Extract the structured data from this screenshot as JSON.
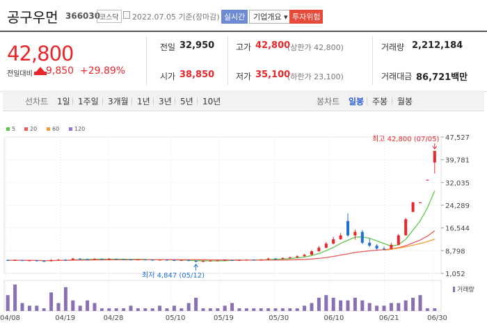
{
  "header": {
    "name": "공구우먼",
    "code": "366030",
    "market": "코스닥",
    "date": "2022.07.05  기준(장마감)",
    "realtime_btn": "실시간",
    "company_btn": "기업개요 ▾",
    "warning_btn": "투자위험"
  },
  "summary": {
    "price": "42,800",
    "change_label": "전일대비",
    "change": "9,850",
    "change_pct": "+29.89%",
    "prev_close_label": "전일",
    "prev_close": "32,950",
    "open_label": "시가",
    "open": "38,850",
    "high_label": "고가",
    "high": "42,800",
    "high_sub": "(상한가 42,800)",
    "low_label": "저가",
    "low": "35,100",
    "low_sub": "(하한가 23,100)",
    "volume_label": "거래량",
    "volume": "2,212,184",
    "amount_label": "거래대금",
    "amount": "86,721백만"
  },
  "tabs": {
    "line_label": "선차트",
    "periods": [
      "1일",
      "1주일",
      "3개월",
      "1년",
      "3년",
      "5년",
      "10년"
    ],
    "candle_label": "봉차트",
    "candles": [
      "일봉",
      "주봉",
      "월봉"
    ],
    "active_candle": "일봉"
  },
  "colors": {
    "up": "#e8262a",
    "down": "#1f6fd1",
    "ma5": "#5ec44a",
    "ma20": "#e85a5a",
    "ma60": "#f19a32",
    "ma120": "#9370c9",
    "volume": "#8a6fb5"
  },
  "chart_data": {
    "type": "candlestick",
    "legend": [
      "5",
      "20",
      "60",
      "120"
    ],
    "y_ticks": [
      "47,527",
      "39,781",
      "32,035",
      "24,289",
      "16,544",
      "8,798",
      "1,052"
    ],
    "x_ticks": [
      "04/08",
      "04/19",
      "04/28",
      "05/10",
      "05/19",
      "05/30",
      "06/10",
      "06/21",
      "06/30"
    ],
    "ylim": [
      1052,
      47527
    ],
    "max_annotation": "최고 42,800 (07/05)",
    "min_annotation": "최저 4,847 (05/12)",
    "volume_label": "거래량",
    "candles": [
      {
        "o": 5600,
        "c": 5500,
        "h": 5800,
        "l": 5300
      },
      {
        "o": 5500,
        "c": 5600,
        "h": 5800,
        "l": 5300
      },
      {
        "o": 5600,
        "c": 5400,
        "h": 5700,
        "l": 5200
      },
      {
        "o": 5400,
        "c": 5500,
        "h": 5700,
        "l": 5300
      },
      {
        "o": 5500,
        "c": 5300,
        "h": 5600,
        "l": 5100
      },
      {
        "o": 5300,
        "c": 5200,
        "h": 5500,
        "l": 5000
      },
      {
        "o": 5200,
        "c": 5600,
        "h": 5900,
        "l": 5100
      },
      {
        "o": 5600,
        "c": 5700,
        "h": 6000,
        "l": 5500
      },
      {
        "o": 5700,
        "c": 5600,
        "h": 5900,
        "l": 5400
      },
      {
        "o": 5600,
        "c": 6100,
        "h": 6300,
        "l": 5500
      },
      {
        "o": 6100,
        "c": 5900,
        "h": 6200,
        "l": 5700
      },
      {
        "o": 5900,
        "c": 5800,
        "h": 6100,
        "l": 5600
      },
      {
        "o": 5800,
        "c": 6000,
        "h": 6200,
        "l": 5700
      },
      {
        "o": 6000,
        "c": 5900,
        "h": 6100,
        "l": 5700
      },
      {
        "o": 5900,
        "c": 6000,
        "h": 6300,
        "l": 5800
      },
      {
        "o": 6000,
        "c": 5900,
        "h": 6100,
        "l": 5700
      },
      {
        "o": 5900,
        "c": 5800,
        "h": 6000,
        "l": 5600
      },
      {
        "o": 5800,
        "c": 5700,
        "h": 5900,
        "l": 5500
      },
      {
        "o": 5700,
        "c": 5800,
        "h": 5900,
        "l": 5600
      },
      {
        "o": 5800,
        "c": 5700,
        "h": 5900,
        "l": 5500
      },
      {
        "o": 5700,
        "c": 5600,
        "h": 5800,
        "l": 5400
      },
      {
        "o": 5600,
        "c": 5700,
        "h": 5800,
        "l": 5500
      },
      {
        "o": 5700,
        "c": 5600,
        "h": 5800,
        "l": 5400
      },
      {
        "o": 5600,
        "c": 5500,
        "h": 5700,
        "l": 5300
      },
      {
        "o": 5500,
        "c": 5600,
        "h": 5700,
        "l": 5400
      },
      {
        "o": 5600,
        "c": 5300,
        "h": 5700,
        "l": 5200
      },
      {
        "o": 5300,
        "c": 5000,
        "h": 5400,
        "l": 4847
      },
      {
        "o": 5000,
        "c": 5300,
        "h": 5500,
        "l": 4900
      },
      {
        "o": 5300,
        "c": 5400,
        "h": 5600,
        "l": 5200
      },
      {
        "o": 5400,
        "c": 5500,
        "h": 5600,
        "l": 5300
      },
      {
        "o": 5500,
        "c": 5600,
        "h": 5700,
        "l": 5400
      },
      {
        "o": 5600,
        "c": 5500,
        "h": 5700,
        "l": 5400
      },
      {
        "o": 5500,
        "c": 5600,
        "h": 5700,
        "l": 5400
      },
      {
        "o": 5600,
        "c": 5700,
        "h": 5800,
        "l": 5500
      },
      {
        "o": 5700,
        "c": 5600,
        "h": 5800,
        "l": 5500
      },
      {
        "o": 5600,
        "c": 5800,
        "h": 5900,
        "l": 5500
      },
      {
        "o": 5800,
        "c": 6100,
        "h": 6400,
        "l": 5700
      },
      {
        "o": 6100,
        "c": 6000,
        "h": 6300,
        "l": 5900
      },
      {
        "o": 6000,
        "c": 6300,
        "h": 6500,
        "l": 5900
      },
      {
        "o": 6300,
        "c": 6500,
        "h": 6800,
        "l": 6200
      },
      {
        "o": 6500,
        "c": 6900,
        "h": 7200,
        "l": 6400
      },
      {
        "o": 6900,
        "c": 7400,
        "h": 7700,
        "l": 6800
      },
      {
        "o": 7400,
        "c": 8600,
        "h": 9000,
        "l": 7300
      },
      {
        "o": 8600,
        "c": 9800,
        "h": 10300,
        "l": 8500
      },
      {
        "o": 9800,
        "c": 11200,
        "h": 11800,
        "l": 9600
      },
      {
        "o": 11200,
        "c": 12700,
        "h": 13500,
        "l": 11000
      },
      {
        "o": 12700,
        "c": 14000,
        "h": 14800,
        "l": 12500
      },
      {
        "o": 18900,
        "c": 14000,
        "h": 21500,
        "l": 13500
      },
      {
        "o": 14000,
        "c": 15200,
        "h": 16000,
        "l": 12500
      },
      {
        "o": 15200,
        "c": 11500,
        "h": 15800,
        "l": 11000
      },
      {
        "o": 11500,
        "c": 10500,
        "h": 13000,
        "l": 10000
      },
      {
        "o": 10500,
        "c": 9500,
        "h": 11000,
        "l": 9000
      },
      {
        "o": 9500,
        "c": 9400,
        "h": 10200,
        "l": 9000
      },
      {
        "o": 9400,
        "c": 10800,
        "h": 11500,
        "l": 9200
      },
      {
        "o": 10800,
        "c": 14000,
        "h": 14500,
        "l": 10500
      },
      {
        "o": 14000,
        "c": 19500,
        "h": 20000,
        "l": 14000
      },
      {
        "o": 22000,
        "c": 25300,
        "h": 25300,
        "l": 22000
      },
      {
        "o": 25300,
        "c": 25300,
        "h": 25300,
        "l": 25300
      },
      {
        "o": 32950,
        "c": 32950,
        "h": 32950,
        "l": 32950
      },
      {
        "o": 38850,
        "c": 42800,
        "h": 42800,
        "l": 35100
      }
    ],
    "volumes": [
      6,
      10,
      3,
      2,
      2,
      1,
      7,
      3,
      9,
      4,
      2,
      4,
      3,
      1,
      1,
      1,
      1,
      2,
      1,
      1,
      1,
      2,
      1,
      2,
      1,
      3,
      5,
      1,
      1,
      1,
      2,
      3,
      1,
      1,
      1,
      1,
      1,
      1,
      1,
      1,
      1,
      2,
      3,
      5,
      6,
      5,
      4,
      4,
      5,
      4,
      3,
      2,
      2,
      3,
      3,
      4,
      5,
      6,
      1,
      1
    ]
  }
}
